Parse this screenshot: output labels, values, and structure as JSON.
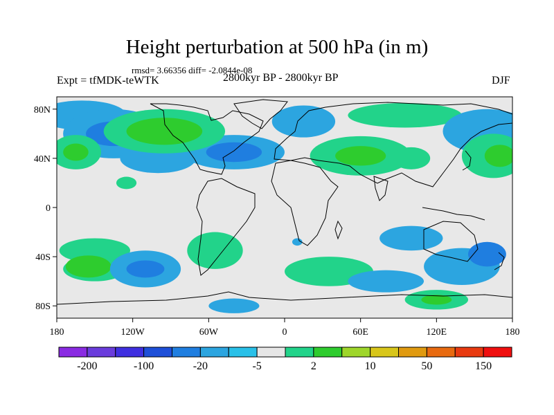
{
  "chart_data": {
    "type": "heatmap",
    "title": "Height perturbation at 500 hPa (in m)",
    "subtitle_left": "Expt = tfMDK-teWTK",
    "subtitle_center": "2800kyr BP - 2800kyr BP",
    "subtitle_right": "DJF",
    "stats": "rmsd= 3.66356 diff= -2.0844e-08",
    "x_ticks": [
      "180",
      "120W",
      "60W",
      "0",
      "60E",
      "120E",
      "180"
    ],
    "x_tick_values": [
      -180,
      -120,
      -60,
      0,
      60,
      120,
      180
    ],
    "y_ticks": [
      "80N",
      "40N",
      "0",
      "40S",
      "80S"
    ],
    "y_tick_values": [
      80,
      40,
      0,
      -40,
      -80
    ],
    "xlim": [
      -180,
      180
    ],
    "ylim": [
      -90,
      90
    ],
    "colorbar": {
      "colors": [
        "#8a2be2",
        "#6a3cdc",
        "#3f2fe0",
        "#1e4fd8",
        "#1f7ee0",
        "#2ca5e0",
        "#29c0e8",
        "#e6e6e6",
        "#22d38a",
        "#2ecc2e",
        "#9ed62a",
        "#d8c61a",
        "#e09a10",
        "#e86a10",
        "#e83a10",
        "#f00f0f"
      ],
      "labels": [
        "-200",
        "-100",
        "-20",
        "-5",
        "2",
        "10",
        "50",
        "150"
      ]
    },
    "features": [
      {
        "lon": -160,
        "lat": 75,
        "rx": 35,
        "ry": 12,
        "level": 5
      },
      {
        "lon": -135,
        "lat": 60,
        "rx": 40,
        "ry": 20,
        "level": 5
      },
      {
        "lon": -135,
        "lat": 60,
        "rx": 22,
        "ry": 10,
        "level": 4
      },
      {
        "lon": -100,
        "lat": 40,
        "rx": 30,
        "ry": 12,
        "level": 5
      },
      {
        "lon": -40,
        "lat": 45,
        "rx": 40,
        "ry": 14,
        "level": 5
      },
      {
        "lon": -40,
        "lat": 45,
        "rx": 22,
        "ry": 8,
        "level": 4
      },
      {
        "lon": -165,
        "lat": 45,
        "rx": 20,
        "ry": 14,
        "level": 8
      },
      {
        "lon": -165,
        "lat": 45,
        "rx": 10,
        "ry": 7,
        "level": 9
      },
      {
        "lon": -95,
        "lat": 62,
        "rx": 48,
        "ry": 18,
        "level": 8
      },
      {
        "lon": -95,
        "lat": 62,
        "rx": 30,
        "ry": 11,
        "level": 9
      },
      {
        "lon": 15,
        "lat": 70,
        "rx": 25,
        "ry": 13,
        "level": 5
      },
      {
        "lon": 95,
        "lat": 75,
        "rx": 45,
        "ry": 10,
        "level": 8
      },
      {
        "lon": 60,
        "lat": 42,
        "rx": 40,
        "ry": 16,
        "level": 8
      },
      {
        "lon": 60,
        "lat": 42,
        "rx": 20,
        "ry": 8,
        "level": 9
      },
      {
        "lon": 100,
        "lat": 40,
        "rx": 15,
        "ry": 9,
        "level": 8
      },
      {
        "lon": 160,
        "lat": 62,
        "rx": 35,
        "ry": 18,
        "level": 5
      },
      {
        "lon": 165,
        "lat": 42,
        "rx": 25,
        "ry": 18,
        "level": 8
      },
      {
        "lon": 170,
        "lat": 42,
        "rx": 12,
        "ry": 9,
        "level": 9
      },
      {
        "lon": -125,
        "lat": 20,
        "rx": 8,
        "ry": 5,
        "level": 8
      },
      {
        "lon": -150,
        "lat": -35,
        "rx": 28,
        "ry": 10,
        "level": 8
      },
      {
        "lon": -150,
        "lat": -50,
        "rx": 25,
        "ry": 10,
        "level": 8
      },
      {
        "lon": -155,
        "lat": -48,
        "rx": 18,
        "ry": 9,
        "level": 9
      },
      {
        "lon": -110,
        "lat": -50,
        "rx": 28,
        "ry": 15,
        "level": 5
      },
      {
        "lon": -110,
        "lat": -50,
        "rx": 15,
        "ry": 7,
        "level": 4
      },
      {
        "lon": -55,
        "lat": -35,
        "rx": 22,
        "ry": 15,
        "level": 8
      },
      {
        "lon": -40,
        "lat": -80,
        "rx": 20,
        "ry": 6,
        "level": 5
      },
      {
        "lon": 35,
        "lat": -52,
        "rx": 35,
        "ry": 12,
        "level": 8
      },
      {
        "lon": 10,
        "lat": -28,
        "rx": 4,
        "ry": 3,
        "level": 5
      },
      {
        "lon": 100,
        "lat": -25,
        "rx": 25,
        "ry": 10,
        "level": 5
      },
      {
        "lon": 80,
        "lat": -60,
        "rx": 30,
        "ry": 9,
        "level": 5
      },
      {
        "lon": 140,
        "lat": -48,
        "rx": 30,
        "ry": 15,
        "level": 5
      },
      {
        "lon": 160,
        "lat": -38,
        "rx": 15,
        "ry": 10,
        "level": 4
      },
      {
        "lon": 120,
        "lat": -75,
        "rx": 25,
        "ry": 8,
        "level": 8
      },
      {
        "lon": 120,
        "lat": -75,
        "rx": 12,
        "ry": 4,
        "level": 9
      }
    ]
  }
}
